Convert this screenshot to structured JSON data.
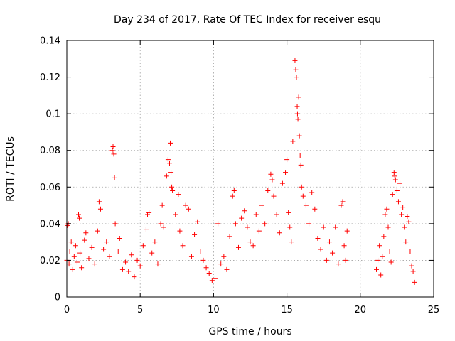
{
  "chart_data": {
    "type": "scatter",
    "title": "Day 234 of 2017, Rate Of TEC Index for receiver esqu",
    "xlabel": "GPS time / hours",
    "ylabel": "ROTI / TECUs",
    "xlim": [
      0,
      25
    ],
    "ylim": [
      0,
      0.14
    ],
    "xticks": [
      "0",
      "5",
      "10",
      "15",
      "20",
      "25"
    ],
    "yticks": [
      "0",
      "0.02",
      "0.04",
      "0.06",
      "0.08",
      "0.1",
      "0.12",
      "0.14"
    ],
    "grid": true,
    "marker": "+",
    "color": "#ff0000",
    "series": [
      {
        "points": [
          [
            0.0,
            0.02
          ],
          [
            0.05,
            0.039
          ],
          [
            0.1,
            0.04
          ],
          [
            0.15,
            0.018
          ],
          [
            0.2,
            0.025
          ],
          [
            0.3,
            0.03
          ],
          [
            0.4,
            0.015
          ],
          [
            0.5,
            0.022
          ],
          [
            0.6,
            0.028
          ],
          [
            0.7,
            0.019
          ],
          [
            0.8,
            0.045
          ],
          [
            0.85,
            0.043
          ],
          [
            0.9,
            0.024
          ],
          [
            1.0,
            0.016
          ],
          [
            1.2,
            0.031
          ],
          [
            1.3,
            0.035
          ],
          [
            1.5,
            0.021
          ],
          [
            1.7,
            0.027
          ],
          [
            1.9,
            0.018
          ],
          [
            2.1,
            0.036
          ],
          [
            2.2,
            0.052
          ],
          [
            2.3,
            0.048
          ],
          [
            2.5,
            0.026
          ],
          [
            2.7,
            0.03
          ],
          [
            2.9,
            0.022
          ],
          [
            3.1,
            0.08
          ],
          [
            3.15,
            0.082
          ],
          [
            3.2,
            0.078
          ],
          [
            3.25,
            0.065
          ],
          [
            3.3,
            0.04
          ],
          [
            3.5,
            0.025
          ],
          [
            3.6,
            0.032
          ],
          [
            3.8,
            0.015
          ],
          [
            4.0,
            0.019
          ],
          [
            4.2,
            0.014
          ],
          [
            4.4,
            0.023
          ],
          [
            4.6,
            0.011
          ],
          [
            4.8,
            0.02
          ],
          [
            5.0,
            0.017
          ],
          [
            5.2,
            0.028
          ],
          [
            5.4,
            0.037
          ],
          [
            5.5,
            0.045
          ],
          [
            5.6,
            0.046
          ],
          [
            5.8,
            0.024
          ],
          [
            6.0,
            0.03
          ],
          [
            6.2,
            0.018
          ],
          [
            6.4,
            0.04
          ],
          [
            6.5,
            0.05
          ],
          [
            6.6,
            0.038
          ],
          [
            6.8,
            0.066
          ],
          [
            6.9,
            0.075
          ],
          [
            7.0,
            0.073
          ],
          [
            7.05,
            0.084
          ],
          [
            7.1,
            0.068
          ],
          [
            7.15,
            0.06
          ],
          [
            7.2,
            0.058
          ],
          [
            7.4,
            0.045
          ],
          [
            7.6,
            0.056
          ],
          [
            7.7,
            0.036
          ],
          [
            7.9,
            0.028
          ],
          [
            8.1,
            0.05
          ],
          [
            8.3,
            0.048
          ],
          [
            8.5,
            0.022
          ],
          [
            8.7,
            0.034
          ],
          [
            8.9,
            0.041
          ],
          [
            9.1,
            0.025
          ],
          [
            9.3,
            0.02
          ],
          [
            9.5,
            0.016
          ],
          [
            9.7,
            0.013
          ],
          [
            9.9,
            0.009
          ],
          [
            10.1,
            0.01
          ],
          [
            10.3,
            0.04
          ],
          [
            10.5,
            0.018
          ],
          [
            10.7,
            0.022
          ],
          [
            10.9,
            0.015
          ],
          [
            11.1,
            0.033
          ],
          [
            11.3,
            0.055
          ],
          [
            11.4,
            0.058
          ],
          [
            11.5,
            0.04
          ],
          [
            11.7,
            0.027
          ],
          [
            11.9,
            0.043
          ],
          [
            12.1,
            0.047
          ],
          [
            12.3,
            0.038
          ],
          [
            12.5,
            0.03
          ],
          [
            12.7,
            0.028
          ],
          [
            12.9,
            0.045
          ],
          [
            13.1,
            0.036
          ],
          [
            13.3,
            0.05
          ],
          [
            13.5,
            0.04
          ],
          [
            13.7,
            0.058
          ],
          [
            13.9,
            0.067
          ],
          [
            14.0,
            0.064
          ],
          [
            14.1,
            0.055
          ],
          [
            14.3,
            0.045
          ],
          [
            14.5,
            0.035
          ],
          [
            14.7,
            0.062
          ],
          [
            14.9,
            0.068
          ],
          [
            15.0,
            0.075
          ],
          [
            15.1,
            0.046
          ],
          [
            15.2,
            0.038
          ],
          [
            15.3,
            0.03
          ],
          [
            15.4,
            0.085
          ],
          [
            15.55,
            0.129
          ],
          [
            15.6,
            0.124
          ],
          [
            15.65,
            0.12
          ],
          [
            15.7,
            0.104
          ],
          [
            15.72,
            0.1
          ],
          [
            15.75,
            0.097
          ],
          [
            15.8,
            0.109
          ],
          [
            15.85,
            0.088
          ],
          [
            15.9,
            0.077
          ],
          [
            15.95,
            0.072
          ],
          [
            16.0,
            0.06
          ],
          [
            16.1,
            0.055
          ],
          [
            16.3,
            0.05
          ],
          [
            16.5,
            0.04
          ],
          [
            16.7,
            0.057
          ],
          [
            16.9,
            0.048
          ],
          [
            17.1,
            0.032
          ],
          [
            17.3,
            0.026
          ],
          [
            17.5,
            0.038
          ],
          [
            17.7,
            0.02
          ],
          [
            17.9,
            0.03
          ],
          [
            18.1,
            0.024
          ],
          [
            18.3,
            0.038
          ],
          [
            18.5,
            0.018
          ],
          [
            18.7,
            0.05
          ],
          [
            18.8,
            0.052
          ],
          [
            18.9,
            0.028
          ],
          [
            19.0,
            0.02
          ],
          [
            19.1,
            0.036
          ],
          [
            21.1,
            0.015
          ],
          [
            21.2,
            0.02
          ],
          [
            21.3,
            0.028
          ],
          [
            21.4,
            0.012
          ],
          [
            21.5,
            0.022
          ],
          [
            21.6,
            0.033
          ],
          [
            21.7,
            0.045
          ],
          [
            21.8,
            0.048
          ],
          [
            21.9,
            0.038
          ],
          [
            22.0,
            0.025
          ],
          [
            22.1,
            0.019
          ],
          [
            22.2,
            0.056
          ],
          [
            22.3,
            0.068
          ],
          [
            22.35,
            0.066
          ],
          [
            22.4,
            0.064
          ],
          [
            22.5,
            0.058
          ],
          [
            22.6,
            0.052
          ],
          [
            22.7,
            0.062
          ],
          [
            22.8,
            0.045
          ],
          [
            22.9,
            0.049
          ],
          [
            23.0,
            0.038
          ],
          [
            23.1,
            0.03
          ],
          [
            23.2,
            0.044
          ],
          [
            23.3,
            0.041
          ],
          [
            23.4,
            0.025
          ],
          [
            23.5,
            0.017
          ],
          [
            23.6,
            0.014
          ],
          [
            23.7,
            0.008
          ]
        ]
      }
    ]
  }
}
